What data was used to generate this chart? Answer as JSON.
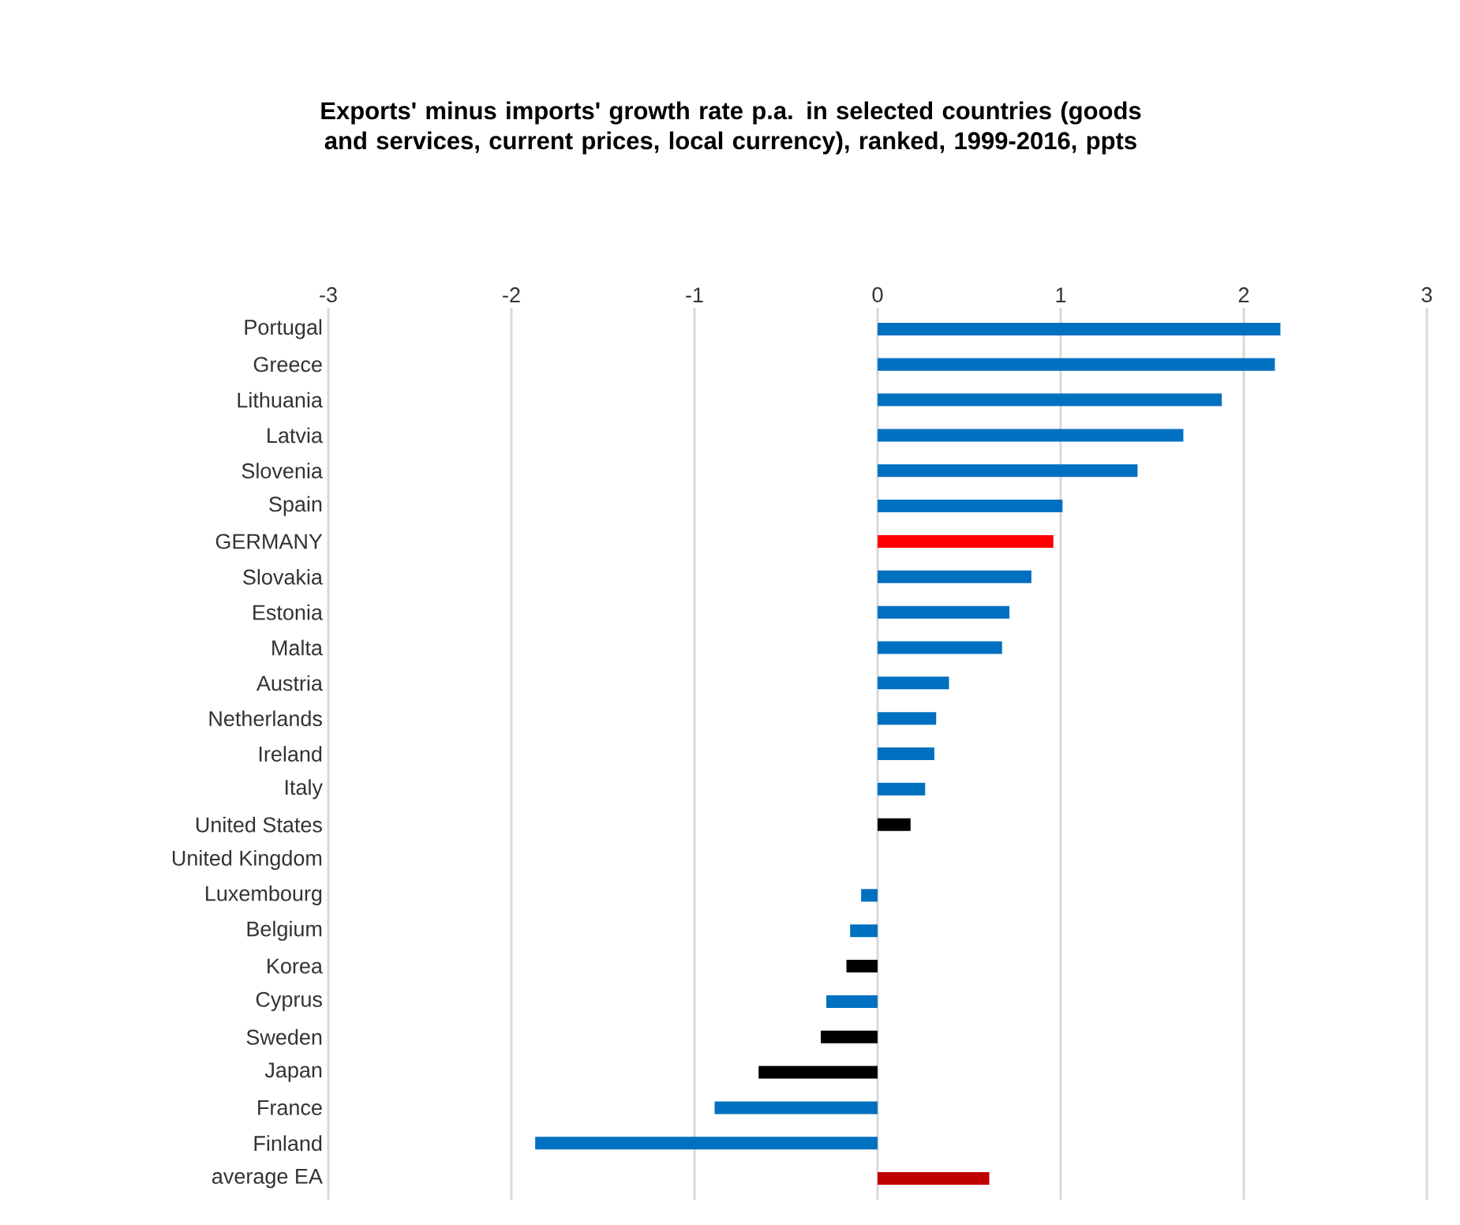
{
  "chart_data": {
    "type": "bar",
    "orientation": "horizontal",
    "title": "Exports' minus imports' growth rate p.a.  in selected countries (goods and services, current prices, local currency), ranked, 1999-2016, ppts",
    "categories": [
      "Portugal",
      "Greece",
      "Lithuania",
      "Latvia",
      "Slovenia",
      "Spain",
      "GERMANY",
      "Slovakia",
      "Estonia",
      "Malta",
      "Austria",
      "Netherlands",
      "Ireland",
      "Italy",
      "United States",
      "United Kingdom",
      "Luxembourg",
      "Belgium",
      "Korea",
      "Cyprus",
      "Sweden",
      "Japan",
      "France",
      "Finland",
      "average EA"
    ],
    "values": [
      2.2,
      2.17,
      1.88,
      1.67,
      1.42,
      1.01,
      0.96,
      0.84,
      0.72,
      0.68,
      0.39,
      0.32,
      0.31,
      0.26,
      0.18,
      0,
      -0.09,
      -0.15,
      -0.17,
      -0.28,
      -0.31,
      -0.65,
      -0.89,
      -1.87,
      0.61
    ],
    "colors": [
      "#0070c0",
      "#0070c0",
      "#0070c0",
      "#0070c0",
      "#0070c0",
      "#0070c0",
      "#ff0000",
      "#0070c0",
      "#0070c0",
      "#0070c0",
      "#0070c0",
      "#0070c0",
      "#0070c0",
      "#0070c0",
      "#000000",
      "#000000",
      "#0070c0",
      "#0070c0",
      "#000000",
      "#0070c0",
      "#000000",
      "#000000",
      "#0070c0",
      "#0070c0",
      "#c00000"
    ],
    "xlim": [
      -3,
      3
    ],
    "xticks": [
      -3,
      -2,
      -1,
      0,
      1,
      2,
      3
    ],
    "grid": "x"
  }
}
